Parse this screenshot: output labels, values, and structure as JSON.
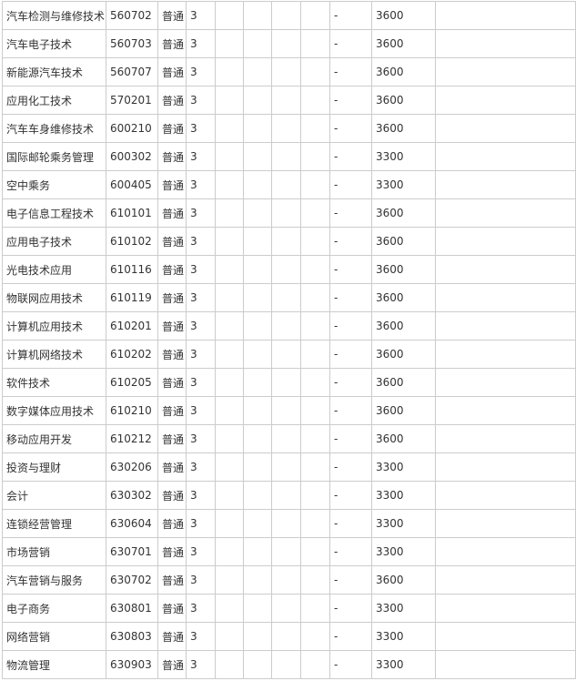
{
  "rows": [
    [
      "汽车检测与维修技术",
      "560702",
      "普通",
      "3",
      "",
      "",
      "",
      "",
      "-",
      "3600",
      ""
    ],
    [
      "汽车电子技术",
      "560703",
      "普通",
      "3",
      "",
      "",
      "",
      "",
      "-",
      "3600",
      ""
    ],
    [
      "新能源汽车技术",
      "560707",
      "普通",
      "3",
      "",
      "",
      "",
      "",
      "-",
      "3600",
      ""
    ],
    [
      "应用化工技术",
      "570201",
      "普通",
      "3",
      "",
      "",
      "",
      "",
      "-",
      "3600",
      ""
    ],
    [
      "汽车车身维修技术",
      "600210",
      "普通",
      "3",
      "",
      "",
      "",
      "",
      "-",
      "3600",
      ""
    ],
    [
      "国际邮轮乘务管理",
      "600302",
      "普通",
      "3",
      "",
      "",
      "",
      "",
      "-",
      "3300",
      ""
    ],
    [
      "空中乘务",
      "600405",
      "普通",
      "3",
      "",
      "",
      "",
      "",
      "-",
      "3300",
      ""
    ],
    [
      "电子信息工程技术",
      "610101",
      "普通",
      "3",
      "",
      "",
      "",
      "",
      "-",
      "3600",
      ""
    ],
    [
      "应用电子技术",
      "610102",
      "普通",
      "3",
      "",
      "",
      "",
      "",
      "-",
      "3600",
      ""
    ],
    [
      "光电技术应用",
      "610116",
      "普通",
      "3",
      "",
      "",
      "",
      "",
      "-",
      "3600",
      ""
    ],
    [
      "物联网应用技术",
      "610119",
      "普通",
      "3",
      "",
      "",
      "",
      "",
      "-",
      "3600",
      ""
    ],
    [
      "计算机应用技术",
      "610201",
      "普通",
      "3",
      "",
      "",
      "",
      "",
      "-",
      "3600",
      ""
    ],
    [
      "计算机网络技术",
      "610202",
      "普通",
      "3",
      "",
      "",
      "",
      "",
      "-",
      "3600",
      ""
    ],
    [
      "软件技术",
      "610205",
      "普通",
      "3",
      "",
      "",
      "",
      "",
      "-",
      "3600",
      ""
    ],
    [
      "数字媒体应用技术",
      "610210",
      "普通",
      "3",
      "",
      "",
      "",
      "",
      "-",
      "3600",
      ""
    ],
    [
      "移动应用开发",
      "610212",
      "普通",
      "3",
      "",
      "",
      "",
      "",
      "-",
      "3600",
      ""
    ],
    [
      "投资与理财",
      "630206",
      "普通",
      "3",
      "",
      "",
      "",
      "",
      "-",
      "3300",
      ""
    ],
    [
      "会计",
      "630302",
      "普通",
      "3",
      "",
      "",
      "",
      "",
      "-",
      "3300",
      ""
    ],
    [
      "连锁经营管理",
      "630604",
      "普通",
      "3",
      "",
      "",
      "",
      "",
      "-",
      "3300",
      ""
    ],
    [
      "市场营销",
      "630701",
      "普通",
      "3",
      "",
      "",
      "",
      "",
      "-",
      "3300",
      ""
    ],
    [
      "汽车营销与服务",
      "630702",
      "普通",
      "3",
      "",
      "",
      "",
      "",
      "-",
      "3600",
      ""
    ],
    [
      "电子商务",
      "630801",
      "普通",
      "3",
      "",
      "",
      "",
      "",
      "-",
      "3300",
      ""
    ],
    [
      "网络营销",
      "630803",
      "普通",
      "3",
      "",
      "",
      "",
      "",
      "-",
      "3300",
      ""
    ],
    [
      "物流管理",
      "630903",
      "普通",
      "3",
      "",
      "",
      "",
      "",
      "-",
      "3300",
      ""
    ]
  ]
}
